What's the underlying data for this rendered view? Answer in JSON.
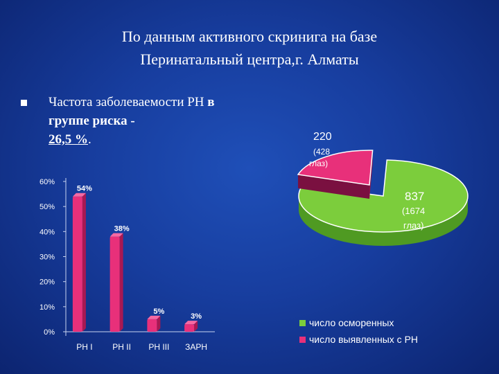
{
  "slide": {
    "title_line1": "По данным активного скринига на базе",
    "title_line2": "Перинатальный центра,г. Алматы",
    "bullet": {
      "part1": "Частота заболеваемости РН ",
      "part2": "в группе риска -",
      "part3": "26,5 %",
      "part4": "."
    }
  },
  "colors": {
    "background": "#173d9e",
    "bar": "#e8307a",
    "pie_green": "#7ccd3c",
    "pie_pink": "#e8307a"
  },
  "chart_data": [
    {
      "type": "bar",
      "categories": [
        "РН I",
        "РН II",
        "РН III",
        "ЗАРН"
      ],
      "values": [
        54,
        38,
        5,
        3
      ],
      "data_labels": [
        "54%",
        "38%",
        "5%",
        "3%"
      ],
      "yticks": [
        "0%",
        "10%",
        "20%",
        "30%",
        "40%",
        "50%",
        "60%"
      ],
      "ylim": [
        0,
        60
      ],
      "title": "",
      "xlabel": "",
      "ylabel": ""
    },
    {
      "type": "pie",
      "slices": [
        {
          "name": "число осморенных",
          "value": 837,
          "label_value": "837",
          "label_note": "(1674",
          "label_note2": "глаз)",
          "color": "#7ccd3c"
        },
        {
          "name": "число выявленных с РН",
          "value": 220,
          "label_value": "220",
          "label_note": "(428",
          "label_note2": "глаз)",
          "color": "#e8307a"
        }
      ],
      "legend_position": "bottom-right",
      "legend": [
        "число осморенных",
        "число выявленных с РН"
      ]
    }
  ]
}
